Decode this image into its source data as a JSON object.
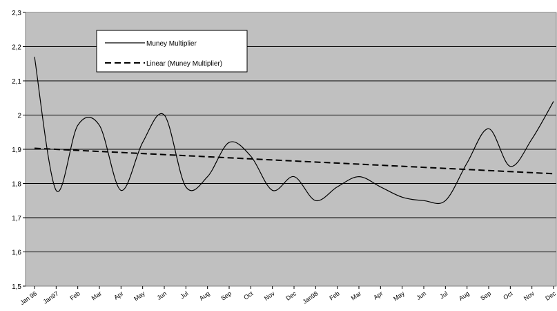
{
  "chart_data": {
    "type": "line",
    "title": "",
    "xlabel": "",
    "ylabel": "",
    "ylim": [
      1.5,
      2.3
    ],
    "yticks": [
      "1,5",
      "1,6",
      "1,7",
      "1,8",
      "1,9",
      "2",
      "2,1",
      "2,2",
      "2,3"
    ],
    "grid": true,
    "legend_position": "top-left",
    "categories": [
      "Jan 96",
      "Jan97",
      "Feb",
      "Mar",
      "Apr",
      "May",
      "Jun",
      "Jul",
      "Aug",
      "Sep",
      "Oct",
      "Nov",
      "Dec",
      "Jan98",
      "Feb",
      "Mar",
      "Apr",
      "May",
      "Jun",
      "Jul",
      "Aug",
      "Sep",
      "Oct",
      "Nov",
      "Dec"
    ],
    "series": [
      {
        "name": "Muney Multiplier",
        "style": "solid",
        "values": [
          2.17,
          1.78,
          1.97,
          1.97,
          1.78,
          1.92,
          2.0,
          1.79,
          1.82,
          1.92,
          1.88,
          1.78,
          1.82,
          1.75,
          1.79,
          1.82,
          1.79,
          1.76,
          1.75,
          1.75,
          1.86,
          1.96,
          1.85,
          1.93,
          2.04
        ]
      },
      {
        "name": "Linear (Muney Multiplier)",
        "style": "dashed",
        "values": [
          1.903,
          1.8999,
          1.8968,
          1.8937,
          1.8906,
          1.8875,
          1.8844,
          1.8813,
          1.8782,
          1.8751,
          1.872,
          1.8689,
          1.8658,
          1.8627,
          1.8596,
          1.8565,
          1.8534,
          1.8503,
          1.8472,
          1.8441,
          1.841,
          1.8379,
          1.8348,
          1.8317,
          1.8286
        ]
      }
    ],
    "colors": {
      "plot_background": "#c0c0c0",
      "line": "#000000",
      "grid": "#000000"
    }
  }
}
